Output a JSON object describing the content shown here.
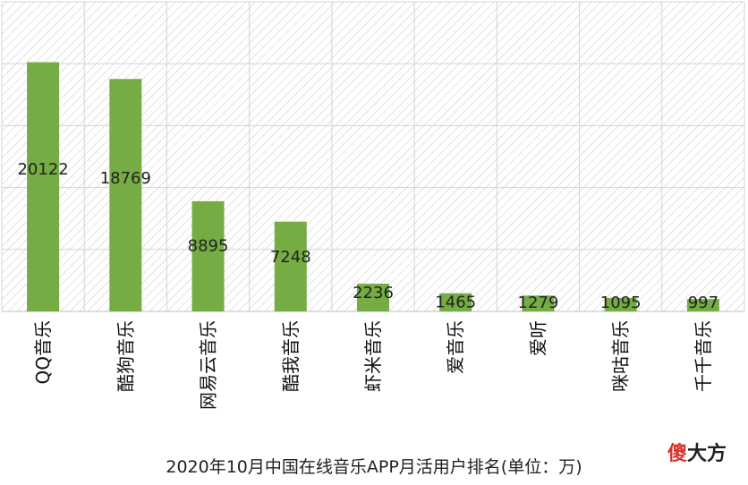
{
  "chart_data": {
    "type": "bar",
    "title": "2020年10月中国在线音乐APP月活用户排名(单位：万)",
    "categories": [
      "QQ音乐",
      "酷狗音乐",
      "网易云音乐",
      "酷我音乐",
      "虾米音乐",
      "爱音乐",
      "爱听",
      "咪咕音乐",
      "千千音乐"
    ],
    "values": [
      20122,
      18769,
      8895,
      7248,
      2236,
      1465,
      1279,
      1095,
      997
    ],
    "data_labels": [
      "20122",
      "18769",
      "8895",
      "7248",
      "2236",
      "1465",
      "1279",
      "1095",
      "997"
    ],
    "ylim": [
      0,
      25000
    ],
    "grid": true,
    "hatched_background": true,
    "bar_color": "#75ac43"
  },
  "watermark": {
    "part1": "傻",
    "part2": "大方",
    "color1": "#d9342b",
    "color2": "#222222"
  }
}
